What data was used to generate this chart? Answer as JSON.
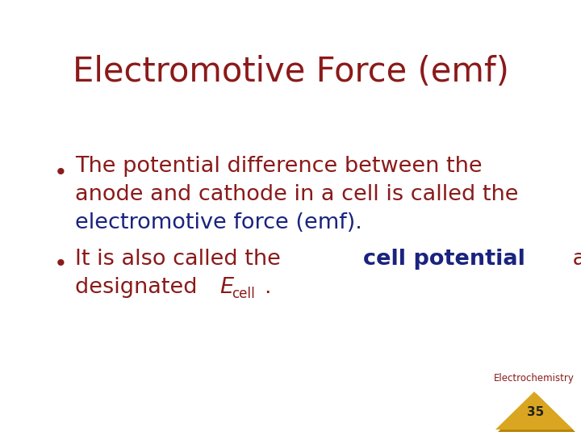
{
  "title": "Electromotive Force (emf)",
  "title_color": "#8B1A1A",
  "title_fontsize": 30,
  "background_color": "#FFFFFF",
  "red_color": "#8B1A1A",
  "blue_color": "#1A237E",
  "bullet_fontsize": 19.5,
  "footer_text": "Electrochemistry",
  "footer_number": "35",
  "footer_color": "#8B1A1A",
  "triangle_color": "#DAA520",
  "triangle_shadow": "#B8860B"
}
